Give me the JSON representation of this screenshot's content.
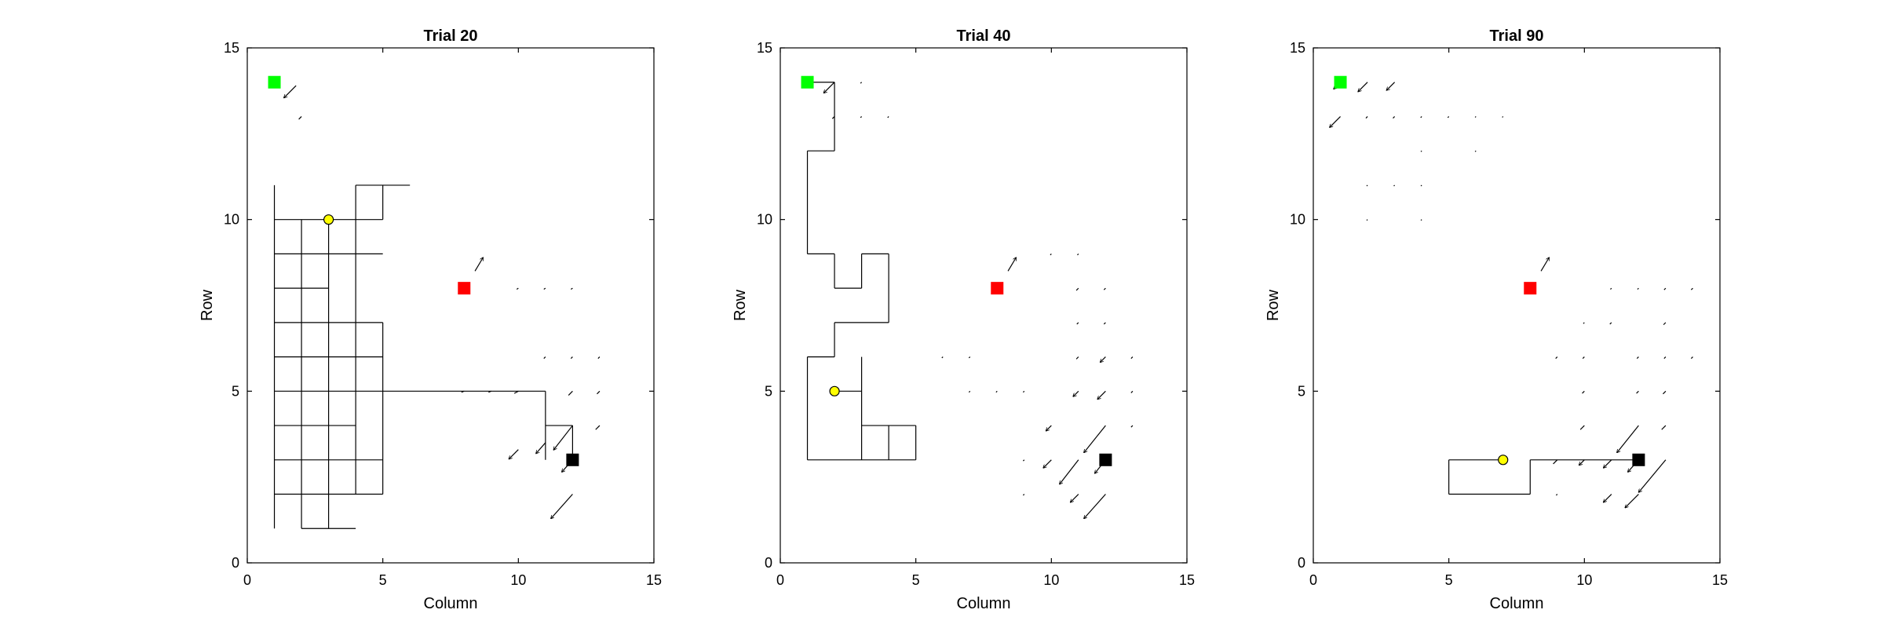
{
  "chart_data": [
    {
      "type": "line",
      "title": "Trial 20",
      "xlabel": "Column",
      "ylabel": "Row",
      "xlim": [
        0,
        15
      ],
      "ylim": [
        0,
        15
      ],
      "xticks": [
        0,
        5,
        10,
        15
      ],
      "yticks": [
        0,
        5,
        10,
        15
      ],
      "grid": false,
      "path_segments": [
        [
          [
            1,
            11
          ],
          [
            1,
            1
          ]
        ],
        [
          [
            2,
            1
          ],
          [
            2,
            10
          ]
        ],
        [
          [
            3,
            10
          ],
          [
            3,
            1
          ]
        ],
        [
          [
            2,
            1
          ],
          [
            4,
            1
          ]
        ],
        [
          [
            4,
            2
          ],
          [
            4,
            11
          ]
        ],
        [
          [
            4,
            11
          ],
          [
            6,
            11
          ]
        ],
        [
          [
            5,
            11
          ],
          [
            5,
            10
          ]
        ],
        [
          [
            1,
            10
          ],
          [
            5,
            10
          ]
        ],
        [
          [
            1,
            9
          ],
          [
            5,
            9
          ]
        ],
        [
          [
            1,
            8
          ],
          [
            3,
            8
          ]
        ],
        [
          [
            1,
            7
          ],
          [
            5,
            7
          ]
        ],
        [
          [
            5,
            7
          ],
          [
            5,
            2
          ]
        ],
        [
          [
            1,
            6
          ],
          [
            5,
            6
          ]
        ],
        [
          [
            1,
            5
          ],
          [
            11,
            5
          ]
        ],
        [
          [
            1,
            4
          ],
          [
            4,
            4
          ]
        ],
        [
          [
            1,
            3
          ],
          [
            5,
            3
          ]
        ],
        [
          [
            1,
            2
          ],
          [
            5,
            2
          ]
        ],
        [
          [
            11,
            5
          ],
          [
            11,
            3
          ]
        ],
        [
          [
            11,
            4
          ],
          [
            12,
            4
          ]
        ],
        [
          [
            12,
            4
          ],
          [
            12,
            3
          ]
        ]
      ],
      "quiver": [
        {
          "x": 1,
          "y": 14,
          "u": -0.2,
          "v": -0.2
        },
        {
          "x": 1.8,
          "y": 13.9,
          "u": -0.45,
          "v": -0.45
        },
        {
          "x": 2,
          "y": 13,
          "u": -0.1,
          "v": -0.1
        },
        {
          "x": 8.4,
          "y": 8.5,
          "u": 0.3,
          "v": 0.5
        },
        {
          "x": 10,
          "y": 8,
          "u": -0.06,
          "v": -0.04
        },
        {
          "x": 11,
          "y": 8,
          "u": -0.06,
          "v": -0.04
        },
        {
          "x": 12,
          "y": 8,
          "u": -0.06,
          "v": -0.04
        },
        {
          "x": 11,
          "y": 6,
          "u": -0.06,
          "v": -0.06
        },
        {
          "x": 12,
          "y": 6,
          "u": -0.06,
          "v": -0.06
        },
        {
          "x": 13,
          "y": 6,
          "u": -0.06,
          "v": -0.06
        },
        {
          "x": 8,
          "y": 5,
          "u": -0.1,
          "v": -0.04
        },
        {
          "x": 9,
          "y": 5,
          "u": -0.1,
          "v": -0.04
        },
        {
          "x": 10,
          "y": 5,
          "u": -0.15,
          "v": -0.08
        },
        {
          "x": 12,
          "y": 5,
          "u": -0.15,
          "v": -0.15
        },
        {
          "x": 13,
          "y": 5,
          "u": -0.1,
          "v": -0.1
        },
        {
          "x": 13,
          "y": 4,
          "u": -0.15,
          "v": -0.15
        },
        {
          "x": 12,
          "y": 4,
          "u": -0.7,
          "v": -0.9
        },
        {
          "x": 10,
          "y": 3.3,
          "u": -0.35,
          "v": -0.35
        },
        {
          "x": 11,
          "y": 3.5,
          "u": -0.35,
          "v": -0.4
        },
        {
          "x": 12,
          "y": 3,
          "u": -0.4,
          "v": -0.45
        },
        {
          "x": 12,
          "y": 2,
          "u": -0.8,
          "v": -0.9
        }
      ],
      "markers": [
        {
          "label": "start",
          "x": 1,
          "y": 14,
          "shape": "square",
          "color": "#00ff00"
        },
        {
          "label": "goal",
          "x": 8,
          "y": 8,
          "shape": "square",
          "color": "#ff0000"
        },
        {
          "label": "end",
          "x": 12,
          "y": 3,
          "shape": "square",
          "color": "#000000"
        },
        {
          "label": "agent",
          "x": 3,
          "y": 10,
          "shape": "circle",
          "color": "#ffff00"
        }
      ]
    },
    {
      "type": "line",
      "title": "Trial 40",
      "xlabel": "Column",
      "ylabel": "Row",
      "xlim": [
        0,
        15
      ],
      "ylim": [
        0,
        15
      ],
      "xticks": [
        0,
        5,
        10,
        15
      ],
      "yticks": [
        0,
        5,
        10,
        15
      ],
      "grid": false,
      "path_segments": [
        [
          [
            1,
            14
          ],
          [
            2,
            14
          ]
        ],
        [
          [
            2,
            14
          ],
          [
            2,
            12
          ]
        ],
        [
          [
            2,
            12
          ],
          [
            1,
            12
          ]
        ],
        [
          [
            1,
            12
          ],
          [
            1,
            9
          ]
        ],
        [
          [
            1,
            9
          ],
          [
            2,
            9
          ]
        ],
        [
          [
            2,
            9
          ],
          [
            2,
            8
          ]
        ],
        [
          [
            2,
            8
          ],
          [
            3,
            8
          ]
        ],
        [
          [
            3,
            8
          ],
          [
            3,
            9
          ]
        ],
        [
          [
            3,
            9
          ],
          [
            4,
            9
          ]
        ],
        [
          [
            4,
            9
          ],
          [
            4,
            7
          ]
        ],
        [
          [
            4,
            7
          ],
          [
            2,
            7
          ]
        ],
        [
          [
            2,
            7
          ],
          [
            2,
            6
          ]
        ],
        [
          [
            2,
            6
          ],
          [
            1,
            6
          ]
        ],
        [
          [
            1,
            6
          ],
          [
            1,
            3
          ]
        ],
        [
          [
            1,
            3
          ],
          [
            5,
            3
          ]
        ],
        [
          [
            5,
            3
          ],
          [
            5,
            4
          ]
        ],
        [
          [
            5,
            4
          ],
          [
            3,
            4
          ]
        ],
        [
          [
            3,
            6
          ],
          [
            3,
            3
          ]
        ],
        [
          [
            4,
            4
          ],
          [
            4,
            3
          ]
        ],
        [
          [
            2,
            5
          ],
          [
            3,
            5
          ]
        ]
      ],
      "quiver": [
        {
          "x": 1,
          "y": 14,
          "u": -0.2,
          "v": -0.2
        },
        {
          "x": 2,
          "y": 14,
          "u": -0.4,
          "v": -0.4
        },
        {
          "x": 3,
          "y": 14,
          "u": -0.04,
          "v": -0.04
        },
        {
          "x": 2,
          "y": 13,
          "u": -0.08,
          "v": -0.08
        },
        {
          "x": 3,
          "y": 13,
          "u": -0.04,
          "v": -0.04
        },
        {
          "x": 4,
          "y": 13,
          "u": -0.04,
          "v": -0.04
        },
        {
          "x": 8.4,
          "y": 8.5,
          "u": 0.3,
          "v": 0.5
        },
        {
          "x": 10,
          "y": 9,
          "u": -0.04,
          "v": -0.04
        },
        {
          "x": 11,
          "y": 9,
          "u": -0.04,
          "v": -0.04
        },
        {
          "x": 11,
          "y": 8,
          "u": -0.08,
          "v": -0.08
        },
        {
          "x": 12,
          "y": 8,
          "u": -0.06,
          "v": -0.06
        },
        {
          "x": 11,
          "y": 7,
          "u": -0.06,
          "v": -0.06
        },
        {
          "x": 12,
          "y": 7,
          "u": -0.06,
          "v": -0.06
        },
        {
          "x": 6,
          "y": 6,
          "u": -0.04,
          "v": -0.04
        },
        {
          "x": 7,
          "y": 6,
          "u": -0.04,
          "v": -0.04
        },
        {
          "x": 11,
          "y": 6,
          "u": -0.08,
          "v": -0.08
        },
        {
          "x": 12,
          "y": 6,
          "u": -0.2,
          "v": -0.2
        },
        {
          "x": 13,
          "y": 6,
          "u": -0.06,
          "v": -0.06
        },
        {
          "x": 7,
          "y": 5,
          "u": -0.04,
          "v": -0.04
        },
        {
          "x": 8,
          "y": 5,
          "u": -0.04,
          "v": -0.04
        },
        {
          "x": 9,
          "y": 5,
          "u": -0.04,
          "v": -0.04
        },
        {
          "x": 11,
          "y": 5,
          "u": -0.2,
          "v": -0.2
        },
        {
          "x": 12,
          "y": 5,
          "u": -0.3,
          "v": -0.3
        },
        {
          "x": 13,
          "y": 5,
          "u": -0.06,
          "v": -0.06
        },
        {
          "x": 10,
          "y": 4,
          "u": -0.2,
          "v": -0.2
        },
        {
          "x": 12,
          "y": 4,
          "u": -0.8,
          "v": -1.0
        },
        {
          "x": 13,
          "y": 4,
          "u": -0.06,
          "v": -0.06
        },
        {
          "x": 9,
          "y": 3,
          "u": -0.04,
          "v": -0.04
        },
        {
          "x": 10,
          "y": 3,
          "u": -0.3,
          "v": -0.3
        },
        {
          "x": 11,
          "y": 3,
          "u": -0.7,
          "v": -0.9
        },
        {
          "x": 12,
          "y": 3,
          "u": -0.4,
          "v": -0.5
        },
        {
          "x": 9,
          "y": 2,
          "u": -0.04,
          "v": -0.04
        },
        {
          "x": 11,
          "y": 2,
          "u": -0.3,
          "v": -0.3
        },
        {
          "x": 12,
          "y": 2,
          "u": -0.8,
          "v": -0.9
        }
      ],
      "markers": [
        {
          "label": "start",
          "x": 1,
          "y": 14,
          "shape": "square",
          "color": "#00ff00"
        },
        {
          "label": "goal",
          "x": 8,
          "y": 8,
          "shape": "square",
          "color": "#ff0000"
        },
        {
          "label": "end",
          "x": 12,
          "y": 3,
          "shape": "square",
          "color": "#000000"
        },
        {
          "label": "agent",
          "x": 2,
          "y": 5,
          "shape": "circle",
          "color": "#ffff00"
        }
      ]
    },
    {
      "type": "line",
      "title": "Trial 90",
      "xlabel": "Column",
      "ylabel": "Row",
      "xlim": [
        0,
        15
      ],
      "ylim": [
        0,
        15
      ],
      "xticks": [
        0,
        5,
        10,
        15
      ],
      "yticks": [
        0,
        5,
        10,
        15
      ],
      "grid": false,
      "path_segments": [
        [
          [
            7,
            3
          ],
          [
            5,
            3
          ]
        ],
        [
          [
            5,
            3
          ],
          [
            5,
            2
          ]
        ],
        [
          [
            5,
            2
          ],
          [
            8,
            2
          ]
        ],
        [
          [
            8,
            2
          ],
          [
            8,
            3
          ]
        ],
        [
          [
            8,
            3
          ],
          [
            12,
            3
          ]
        ]
      ],
      "quiver": [
        {
          "x": 1,
          "y": 14,
          "u": -0.25,
          "v": -0.25
        },
        {
          "x": 2,
          "y": 14,
          "u": -0.35,
          "v": -0.35
        },
        {
          "x": 3,
          "y": 14,
          "u": -0.3,
          "v": -0.3
        },
        {
          "x": 1,
          "y": 13,
          "u": -0.4,
          "v": -0.4
        },
        {
          "x": 2,
          "y": 13,
          "u": -0.06,
          "v": -0.06
        },
        {
          "x": 3,
          "y": 13,
          "u": -0.06,
          "v": -0.06
        },
        {
          "x": 4,
          "y": 13,
          "u": -0.04,
          "v": -0.04
        },
        {
          "x": 5,
          "y": 13,
          "u": -0.04,
          "v": -0.04
        },
        {
          "x": 6,
          "y": 13,
          "u": -0.03,
          "v": -0.03
        },
        {
          "x": 7,
          "y": 13,
          "u": -0.03,
          "v": -0.03
        },
        {
          "x": 4,
          "y": 12,
          "u": -0.03,
          "v": -0.03
        },
        {
          "x": 6,
          "y": 12,
          "u": -0.03,
          "v": -0.03
        },
        {
          "x": 2,
          "y": 11,
          "u": -0.03,
          "v": -0.03
        },
        {
          "x": 3,
          "y": 11,
          "u": -0.03,
          "v": -0.03
        },
        {
          "x": 4,
          "y": 11,
          "u": -0.03,
          "v": -0.03
        },
        {
          "x": 2,
          "y": 10,
          "u": -0.03,
          "v": -0.03
        },
        {
          "x": 4,
          "y": 10,
          "u": -0.03,
          "v": -0.03
        },
        {
          "x": 8.4,
          "y": 8.5,
          "u": 0.3,
          "v": 0.5
        },
        {
          "x": 11,
          "y": 8,
          "u": -0.04,
          "v": -0.04
        },
        {
          "x": 12,
          "y": 8,
          "u": -0.04,
          "v": -0.04
        },
        {
          "x": 13,
          "y": 8,
          "u": -0.06,
          "v": -0.06
        },
        {
          "x": 14,
          "y": 8,
          "u": -0.06,
          "v": -0.06
        },
        {
          "x": 10,
          "y": 7,
          "u": -0.04,
          "v": -0.04
        },
        {
          "x": 11,
          "y": 7,
          "u": -0.06,
          "v": -0.06
        },
        {
          "x": 13,
          "y": 7,
          "u": -0.08,
          "v": -0.08
        },
        {
          "x": 9,
          "y": 6,
          "u": -0.06,
          "v": -0.06
        },
        {
          "x": 10,
          "y": 6,
          "u": -0.06,
          "v": -0.06
        },
        {
          "x": 12,
          "y": 6,
          "u": -0.06,
          "v": -0.06
        },
        {
          "x": 13,
          "y": 6,
          "u": -0.06,
          "v": -0.06
        },
        {
          "x": 14,
          "y": 6,
          "u": -0.06,
          "v": -0.06
        },
        {
          "x": 10,
          "y": 5,
          "u": -0.08,
          "v": -0.08
        },
        {
          "x": 12,
          "y": 5,
          "u": -0.08,
          "v": -0.08
        },
        {
          "x": 13,
          "y": 5,
          "u": -0.1,
          "v": -0.1
        },
        {
          "x": 10,
          "y": 4,
          "u": -0.15,
          "v": -0.15
        },
        {
          "x": 12,
          "y": 4,
          "u": -0.8,
          "v": -1.0
        },
        {
          "x": 13,
          "y": 4,
          "u": -0.15,
          "v": -0.15
        },
        {
          "x": 9,
          "y": 3,
          "u": -0.15,
          "v": -0.15
        },
        {
          "x": 10,
          "y": 3,
          "u": -0.2,
          "v": -0.2
        },
        {
          "x": 11,
          "y": 3,
          "u": -0.3,
          "v": -0.3
        },
        {
          "x": 12,
          "y": 3,
          "u": -0.4,
          "v": -0.45
        },
        {
          "x": 13,
          "y": 3,
          "u": -1.0,
          "v": -1.2
        },
        {
          "x": 9,
          "y": 2,
          "u": -0.04,
          "v": -0.04
        },
        {
          "x": 11,
          "y": 2,
          "u": -0.3,
          "v": -0.3
        },
        {
          "x": 12,
          "y": 2,
          "u": -0.5,
          "v": -0.5
        }
      ],
      "markers": [
        {
          "label": "start",
          "x": 1,
          "y": 14,
          "shape": "square",
          "color": "#00ff00"
        },
        {
          "label": "goal",
          "x": 8,
          "y": 8,
          "shape": "square",
          "color": "#ff0000"
        },
        {
          "label": "end",
          "x": 12,
          "y": 3,
          "shape": "square",
          "color": "#000000"
        },
        {
          "label": "agent",
          "x": 7,
          "y": 3,
          "shape": "circle",
          "color": "#ffff00"
        }
      ]
    }
  ]
}
